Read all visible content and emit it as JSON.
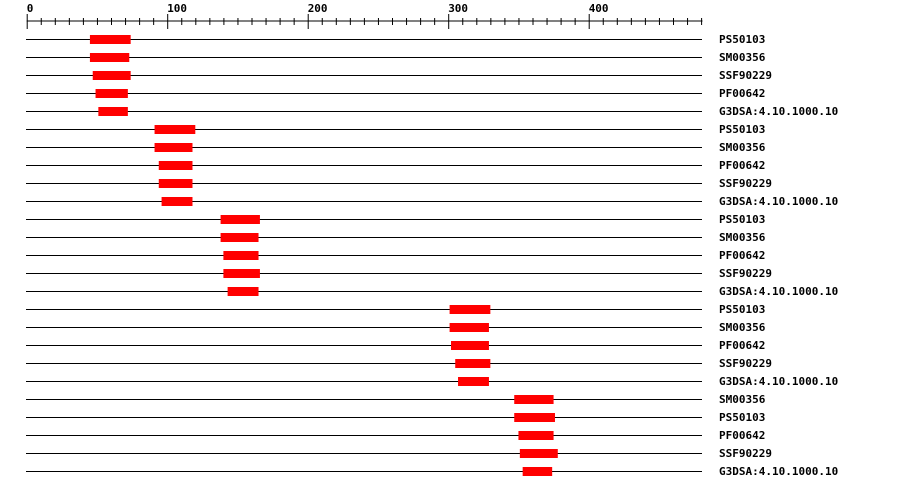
{
  "axis": {
    "min": 0,
    "max": 481,
    "major_ticks": [
      0,
      100,
      200,
      300,
      400
    ],
    "minor_step": 10
  },
  "colors": {
    "domain": "#ff0000",
    "line": "#000000"
  },
  "rows": [
    {
      "label": "PS50103",
      "start": 45,
      "end": 74
    },
    {
      "label": "SM00356",
      "start": 45,
      "end": 73
    },
    {
      "label": "SSF90229",
      "start": 47,
      "end": 74
    },
    {
      "label": "PF00642",
      "start": 49,
      "end": 72
    },
    {
      "label": "G3DSA:4.10.1000.10",
      "start": 51,
      "end": 72
    },
    {
      "label": "PS50103",
      "start": 91,
      "end": 120
    },
    {
      "label": "SM00356",
      "start": 91,
      "end": 118
    },
    {
      "label": "PF00642",
      "start": 94,
      "end": 118
    },
    {
      "label": "SSF90229",
      "start": 94,
      "end": 118
    },
    {
      "label": "G3DSA:4.10.1000.10",
      "start": 96,
      "end": 118
    },
    {
      "label": "PS50103",
      "start": 138,
      "end": 166
    },
    {
      "label": "SM00356",
      "start": 138,
      "end": 165
    },
    {
      "label": "PF00642",
      "start": 140,
      "end": 165
    },
    {
      "label": "SSF90229",
      "start": 140,
      "end": 166
    },
    {
      "label": "G3DSA:4.10.1000.10",
      "start": 143,
      "end": 165
    },
    {
      "label": "PS50103",
      "start": 301,
      "end": 330
    },
    {
      "label": "SM00356",
      "start": 301,
      "end": 329
    },
    {
      "label": "PF00642",
      "start": 302,
      "end": 329
    },
    {
      "label": "SSF90229",
      "start": 305,
      "end": 330
    },
    {
      "label": "G3DSA:4.10.1000.10",
      "start": 307,
      "end": 329
    },
    {
      "label": "SM00356",
      "start": 347,
      "end": 375
    },
    {
      "label": "PS50103",
      "start": 347,
      "end": 376
    },
    {
      "label": "PF00642",
      "start": 350,
      "end": 375
    },
    {
      "label": "SSF90229",
      "start": 351,
      "end": 378
    },
    {
      "label": "G3DSA:4.10.1000.10",
      "start": 353,
      "end": 374
    }
  ]
}
